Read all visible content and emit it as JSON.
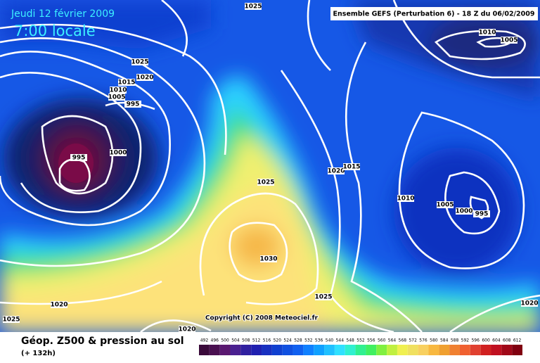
{
  "header": {
    "date": "Jeudi 12 février 2009",
    "time": "7:00 locale",
    "model": "Ensemble GEFS (Perturbation 6)  - 18 Z du 06/02/2009"
  },
  "map": {
    "isobar_labels": [
      1025,
      1010,
      1005,
      1025,
      1020,
      1015,
      1010,
      1005,
      995,
      995,
      1000,
      1025,
      1020,
      1015,
      1010,
      1005,
      1000,
      995,
      1030,
      1025,
      1020,
      1025,
      1020,
      1020
    ],
    "copyright": "Copyright (C) 2008 Meteociel.fr"
  },
  "footer": {
    "title": "Géop. Z500 & pression au sol",
    "lead": "(+ 132h)"
  },
  "scale": {
    "values": [
      492,
      496,
      500,
      504,
      508,
      512,
      516,
      520,
      524,
      528,
      532,
      536,
      540,
      544,
      548,
      552,
      556,
      560,
      564,
      568,
      572,
      576,
      580,
      584,
      588,
      592,
      596,
      600,
      604,
      608,
      612
    ]
  }
}
